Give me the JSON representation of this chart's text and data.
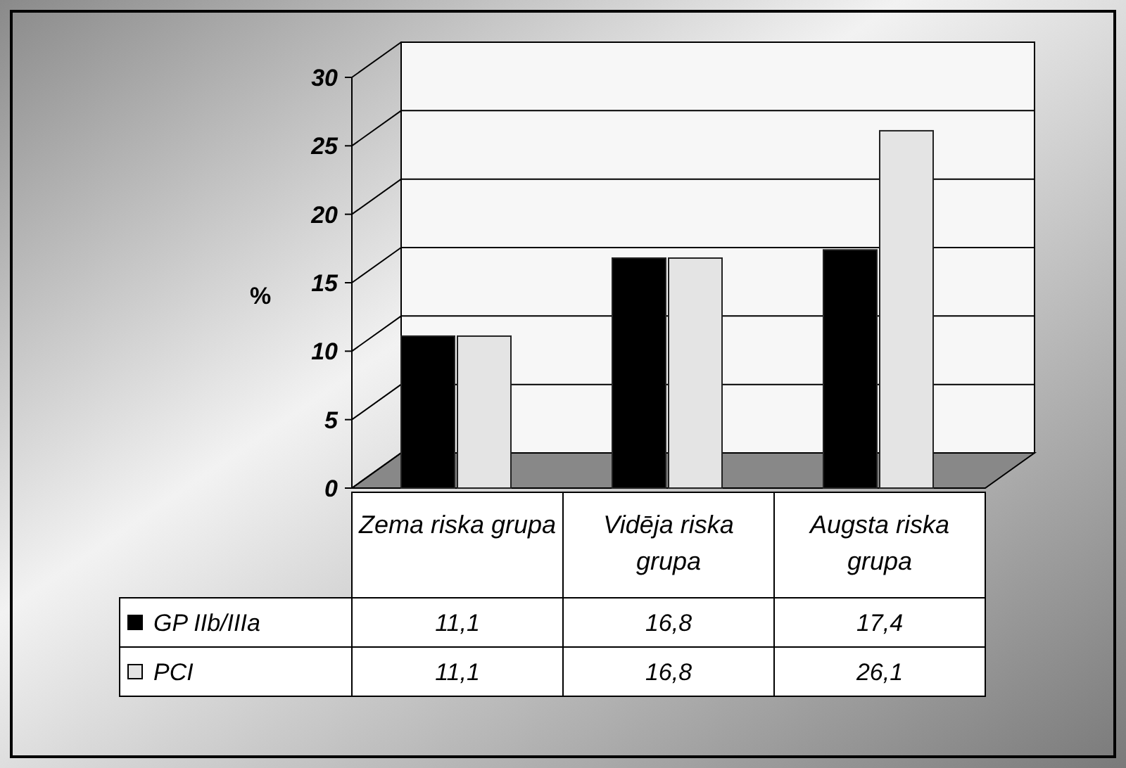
{
  "chart_data": {
    "type": "bar",
    "ylabel": "%",
    "categories": [
      "Zema riska grupa",
      "Vidēja riska grupa",
      "Augsta riska grupa"
    ],
    "series": [
      {
        "name": "GP IIb/IIIa",
        "color": "#000000",
        "values": [
          11.1,
          16.8,
          17.4
        ],
        "value_labels": [
          "11,1",
          "16,8",
          "17,4"
        ]
      },
      {
        "name": "PCI",
        "color": "#e4e4e4",
        "values": [
          11.1,
          16.8,
          26.1
        ],
        "value_labels": [
          "11,1",
          "16,8",
          "26,1"
        ]
      }
    ],
    "ylim": [
      0,
      30
    ],
    "yticks": [
      0,
      5,
      10,
      15,
      20,
      25,
      30
    ],
    "grid": "y",
    "legend": "bottom"
  }
}
